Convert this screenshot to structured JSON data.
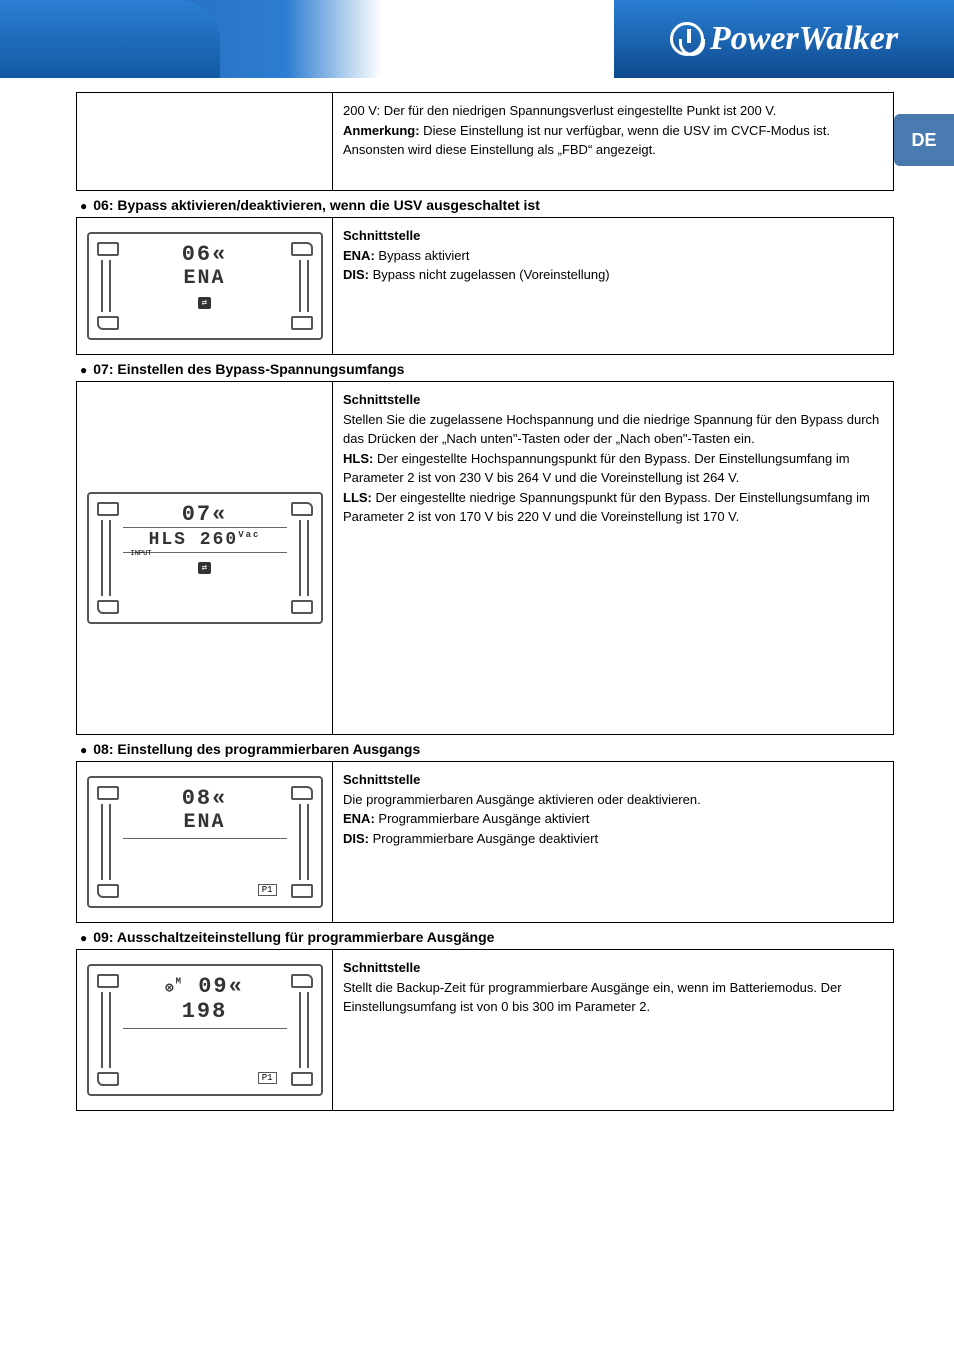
{
  "brand": "PowerWalker",
  "lang_tab": "DE",
  "rows": [
    {
      "img_text1": "",
      "img_text2": "",
      "desc_html": "200 V: Der für den niedrigen Spannungsverlust eingestellte Punkt ist 200 V.<br><span class=\"descbold\">Anmerkung:</span> Diese Einstellung ist nur verfügbar, wenn die USV im CVCF-Modus ist. Ansonsten wird diese Einstellung als „FBD“ angezeigt."
    }
  ],
  "section06": {
    "bullet": "06: Bypass aktivieren/deaktivieren, wenn die USV ausgeschaltet ist",
    "lcd_top": "06«",
    "lcd_mid": "ENA",
    "desc_html": "<span class=\"descbold\">Schnittstelle</span><br><span class=\"descbold\">ENA:</span> Bypass aktiviert<br><span class=\"descbold\">DIS:</span> Bypass nicht zugelassen (Voreinstellung)"
  },
  "section07": {
    "bullet": "07: Einstellen des Bypass-Spannungsumfangs",
    "lcd_top": "07«",
    "lcd_mid": "HLS  260",
    "lcd_mid_sup": "Vac",
    "lcd_input": "INPUT",
    "desc_html": "<span class=\"descbold\">Schnittstelle</span><br>Stellen Sie die zugelassene Hochspannung und die niedrige Spannung für den Bypass durch das Drücken der „Nach unten\"-Tasten oder der „Nach oben\"-Tasten ein.<br><span class=\"descbold\">HLS:</span> Der eingestellte Hochspannungspunkt für den Bypass. Der Einstellungsumfang im Parameter 2 ist von 230 V bis 264 V und die Voreinstellung ist 264 V.<br><span class=\"descbold\">LLS:</span> Der eingestellte niedrige Spannungspunkt für den Bypass. Der Einstellungsumfang im Parameter 2 ist von 170 V bis 220 V und die Voreinstellung ist 170 V."
  },
  "section08": {
    "bullet": "08: Einstellung des programmierbaren Ausgangs",
    "lcd_top": "08«",
    "lcd_mid": "ENA",
    "desc_html": "<span class=\"descbold\">Schnittstelle</span><br>Die programmierbaren Ausgänge aktivieren oder deaktivieren.<br><span class=\"descbold\">ENA:</span> Programmierbare Ausgänge aktiviert<br><span class=\"descbold\">DIS:</span> Programmierbare Ausgänge deaktiviert"
  },
  "section09": {
    "bullet": "09: Ausschaltzeiteinstellung für programmierbare Ausgänge",
    "lcd_top": "09«",
    "lcd_mid": "198",
    "desc_html": "<span class=\"descbold\">Schnittstelle</span><br>Stellt die Backup-Zeit für programmierbare Ausgänge ein, wenn im Batteriemodus. Der Einstellungsumfang ist von 0 bis 300 im Parameter 2."
  }
}
